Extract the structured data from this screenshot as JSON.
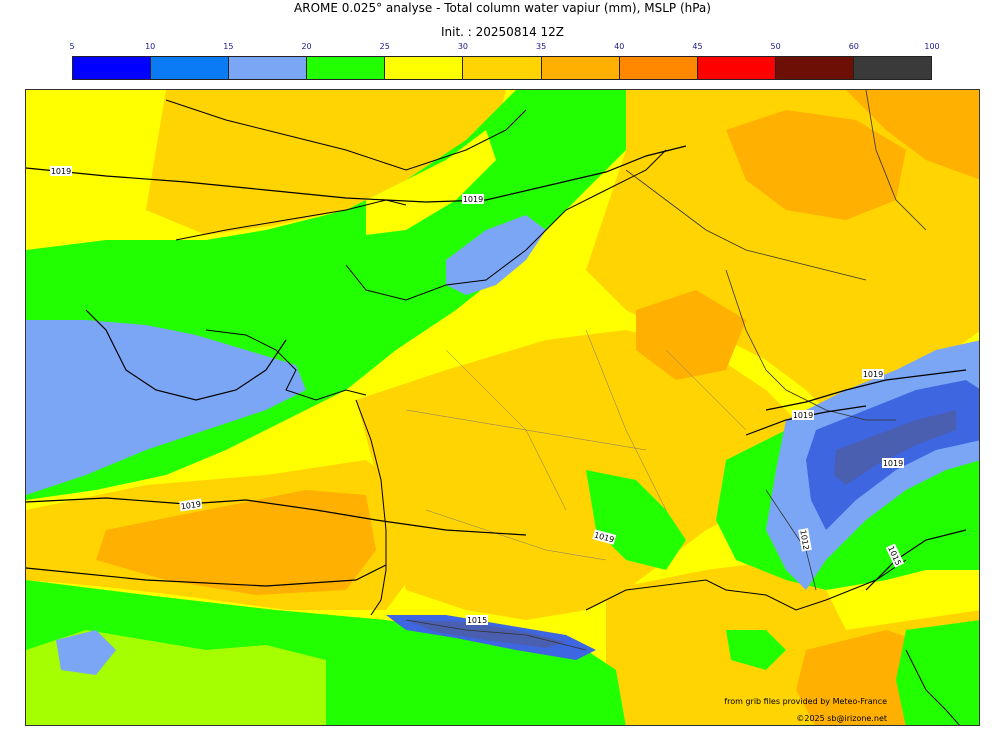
{
  "title": {
    "line1": "AROME 0.025° analyse - Total column water vapiur (mm), MSLP (hPa)",
    "line2": "Init. : 20250814 12Z"
  },
  "colorbar": {
    "ticks": [
      "5",
      "10",
      "15",
      "20",
      "25",
      "30",
      "35",
      "40",
      "45",
      "50",
      "60",
      "100"
    ],
    "colors": [
      "#0000ff",
      "#0a7af5",
      "#7aa6f5",
      "#22ff00",
      "#ffff00",
      "#ffd400",
      "#ffb000",
      "#ff8800",
      "#ff0000",
      "#6e0f05",
      "#3a3a3a"
    ]
  },
  "isobar_labels": [
    "1019",
    "1019",
    "1019",
    "1019",
    "1019",
    "1019",
    "1019",
    "1015",
    "1012",
    "1015",
    "1015"
  ],
  "credits": {
    "source": "from grib files provided by Meteo-France",
    "copyright": "©2025 sb@irizone.net"
  },
  "legend": {
    "map_colors": {
      "background": "#ffff00",
      "dry_band": "#7aa6f5",
      "moist_green": "#22ff00",
      "orange_zone": "#ffd400",
      "dark_orange": "#ffb000",
      "alps_blue": "#3d66e0"
    }
  }
}
